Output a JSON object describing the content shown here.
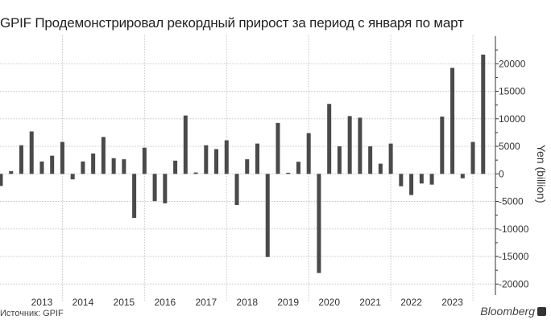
{
  "chart_data": {
    "type": "bar",
    "title": "GPIF Продемонстрировал рекордный прирост за период с января по март",
    "ylabel": "Yen (billion)",
    "xlabel": "",
    "ylim": [
      -22000,
      25000
    ],
    "yticks": [
      -20000,
      -15000,
      -10000,
      -5000,
      0,
      5000,
      10000,
      15000,
      20000
    ],
    "y_axis_side": "right",
    "grid": true,
    "bar_color": "#4a4a4a",
    "year_labels": [
      {
        "label": "2013",
        "bar": 4
      },
      {
        "label": "2014",
        "bar": 8
      },
      {
        "label": "2015",
        "bar": 12
      },
      {
        "label": "2016",
        "bar": 16
      },
      {
        "label": "2017",
        "bar": 20
      },
      {
        "label": "2018",
        "bar": 24
      },
      {
        "label": "2019",
        "bar": 28
      },
      {
        "label": "2020",
        "bar": 32
      },
      {
        "label": "2021",
        "bar": 36
      },
      {
        "label": "2022",
        "bar": 40
      },
      {
        "label": "2023",
        "bar": 44
      }
    ],
    "values": [
      -2200,
      500,
      5200,
      7700,
      2250,
      3300,
      5800,
      -1000,
      2250,
      3700,
      6700,
      2850,
      2650,
      -8000,
      4750,
      -4950,
      -5350,
      2400,
      10600,
      250,
      5200,
      4500,
      6100,
      -5650,
      2650,
      5500,
      -15100,
      9250,
      200,
      2200,
      7400,
      -18000,
      12700,
      5000,
      10500,
      10200,
      5000,
      1850,
      5500,
      -2250,
      -3850,
      -1750,
      -1950,
      10400,
      19250,
      -800,
      5800,
      21650
    ]
  },
  "footer": {
    "source": "Источник: GPIF",
    "brand": "Bloomberg"
  }
}
